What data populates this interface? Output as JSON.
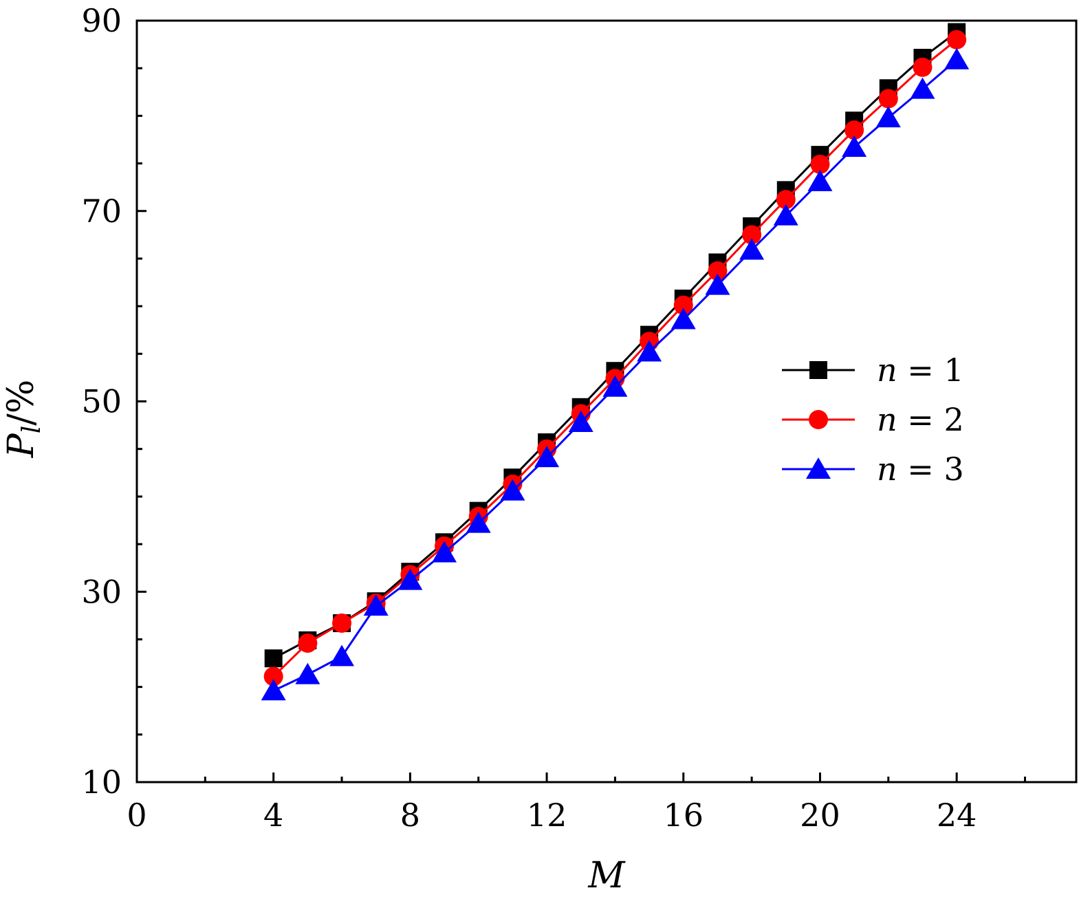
{
  "chart_data": {
    "type": "line",
    "xlabel": "M",
    "ylabel_main": "P",
    "ylabel_sub": "l",
    "ylabel_rest": "/%",
    "xlim": [
      0,
      27.5
    ],
    "ylim": [
      10,
      90
    ],
    "xticks_major": [
      0,
      4,
      8,
      12,
      16,
      20,
      24
    ],
    "xticks_minor": [
      2,
      6,
      10,
      14,
      18,
      22,
      26
    ],
    "yticks_major": [
      10,
      30,
      50,
      70,
      90
    ],
    "yticks_minor": [
      15,
      20,
      25,
      35,
      40,
      45,
      55,
      60,
      65,
      75,
      80,
      85
    ],
    "grid": false,
    "legend_position": "right-middle",
    "x": [
      4,
      5,
      6,
      7,
      8,
      9,
      10,
      11,
      12,
      13,
      14,
      15,
      16,
      17,
      18,
      19,
      20,
      21,
      22,
      23,
      24
    ],
    "series": [
      {
        "name": "n = 1",
        "legend_var": "n",
        "legend_eq": " = ",
        "legend_val": "1",
        "color": "#000000",
        "marker": "square",
        "values": [
          23.0,
          24.9,
          26.7,
          29.0,
          32.1,
          35.2,
          38.5,
          42.0,
          45.7,
          49.4,
          53.2,
          57.0,
          60.8,
          64.6,
          68.4,
          72.2,
          75.9,
          79.5,
          82.9,
          86.1,
          88.8
        ]
      },
      {
        "name": "n = 2",
        "legend_var": "n",
        "legend_eq": " = ",
        "legend_val": "2",
        "color": "#ff0000",
        "marker": "circle",
        "values": [
          21.1,
          24.6,
          26.7,
          28.8,
          31.8,
          34.8,
          37.9,
          41.3,
          45.0,
          48.7,
          52.4,
          56.3,
          60.1,
          63.7,
          67.5,
          71.2,
          74.9,
          78.5,
          81.8,
          85.1,
          88.0
        ]
      },
      {
        "name": "n = 3",
        "legend_var": "n",
        "legend_eq": " = ",
        "legend_val": "3",
        "color": "#0000ff",
        "marker": "triangle",
        "values": [
          19.6,
          21.3,
          23.2,
          28.5,
          31.2,
          34.1,
          37.2,
          40.6,
          44.1,
          47.8,
          51.5,
          55.2,
          58.6,
          62.2,
          65.9,
          69.5,
          73.1,
          76.7,
          79.8,
          82.8,
          85.9
        ]
      }
    ]
  }
}
